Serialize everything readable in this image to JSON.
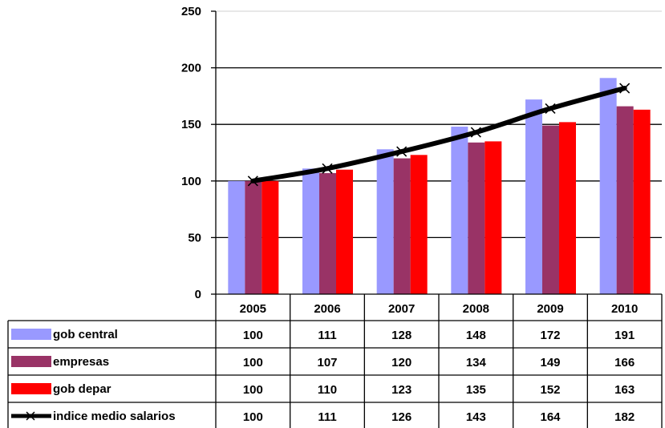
{
  "chart_data": {
    "type": "bar",
    "categories": [
      "2005",
      "2006",
      "2007",
      "2008",
      "2009",
      "2010"
    ],
    "ylim": [
      0,
      250
    ],
    "yticks": [
      "0",
      "50",
      "100",
      "150",
      "200",
      "250"
    ],
    "grid": true,
    "legend": "data-table-below",
    "series": [
      {
        "name": "gob central",
        "type": "bar",
        "color": "#9999FF",
        "values": [
          100,
          111,
          128,
          148,
          172,
          191
        ]
      },
      {
        "name": "empresas",
        "type": "bar",
        "color": "#993366",
        "values": [
          100,
          107,
          120,
          134,
          149,
          166
        ]
      },
      {
        "name": "gob depar",
        "type": "bar",
        "color": "#FF0000",
        "values": [
          100,
          110,
          123,
          135,
          152,
          163
        ]
      },
      {
        "name": "indice medio salarios",
        "type": "line",
        "color": "#000000",
        "marker": "x",
        "values": [
          100,
          111,
          126,
          143,
          164,
          182
        ]
      }
    ]
  }
}
